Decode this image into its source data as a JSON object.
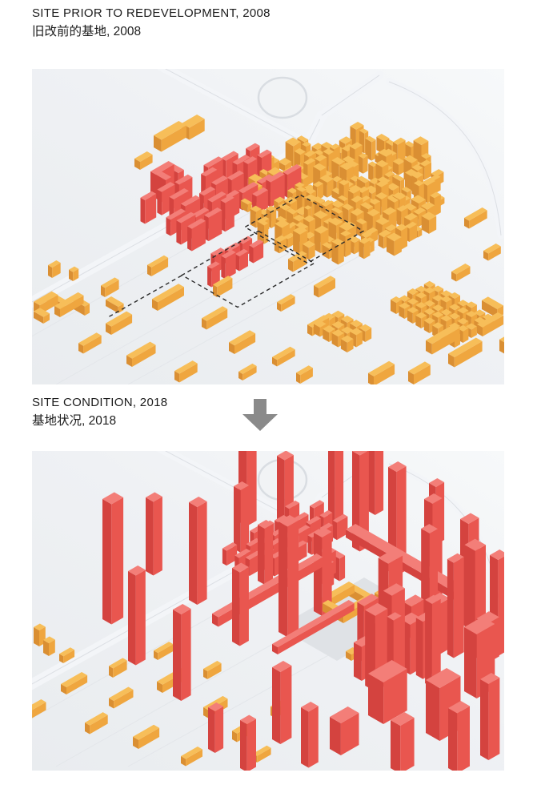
{
  "page": {
    "background": "#ffffff"
  },
  "sections": [
    {
      "id": "before",
      "title_en": "SITE PRIOR TO REDEVELOPMENT, 2008",
      "title_zh": "旧改前的基地, 2008"
    },
    {
      "id": "after",
      "title_en": "SITE CONDITION, 2018",
      "title_zh": "基地状况, 2018"
    }
  ],
  "icons": {
    "between_sections": "down-arrow"
  },
  "colors": {
    "heading_text": "#1c1c1c",
    "arrow": "#8a8a8a",
    "model_base_dark": "#e9ecef",
    "model_base_light": "#f7f9fa",
    "road": "#f3f5f8",
    "road_edge": "#dcdfe4",
    "fabric_top": "#F7BE59",
    "fabric_side": "#EFA63F",
    "fabric_shade": "#DA8F33",
    "tower_top": "#F37E78",
    "tower_side": "#E9564F",
    "tower_shade": "#D4433F",
    "boundary_dash": "#2b2b2b",
    "plaza": "#dfe2e6"
  }
}
